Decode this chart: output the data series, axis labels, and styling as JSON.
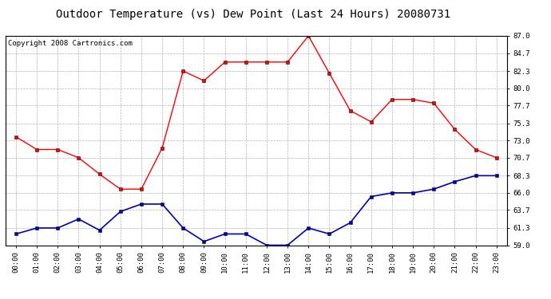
{
  "title": "Outdoor Temperature (vs) Dew Point (Last 24 Hours) 20080731",
  "copyright_text": "Copyright 2008 Cartronics.com",
  "hours": [
    "00:00",
    "01:00",
    "02:00",
    "03:00",
    "04:00",
    "05:00",
    "06:00",
    "07:00",
    "08:00",
    "09:00",
    "10:00",
    "11:00",
    "12:00",
    "13:00",
    "14:00",
    "15:00",
    "16:00",
    "17:00",
    "18:00",
    "19:00",
    "20:00",
    "21:00",
    "22:00",
    "23:00"
  ],
  "temp": [
    73.5,
    71.8,
    71.8,
    70.7,
    68.5,
    66.5,
    66.5,
    72.0,
    82.3,
    81.0,
    83.5,
    83.5,
    83.5,
    83.5,
    87.0,
    82.0,
    77.0,
    75.5,
    78.5,
    78.5,
    78.0,
    74.5,
    71.8,
    70.7
  ],
  "dew": [
    60.5,
    61.3,
    61.3,
    62.5,
    61.0,
    63.5,
    64.5,
    64.5,
    61.3,
    59.5,
    60.5,
    60.5,
    59.0,
    59.0,
    61.3,
    60.5,
    62.0,
    65.5,
    66.0,
    66.0,
    66.5,
    67.5,
    68.3,
    68.3
  ],
  "temp_color": "#ff0000",
  "dew_color": "#0000bb",
  "bg_color": "#ffffff",
  "plot_bg_color": "#ffffff",
  "grid_color": "#aaaaaa",
  "ylim_min": 59.0,
  "ylim_max": 87.0,
  "yticks": [
    59.0,
    61.3,
    63.7,
    66.0,
    68.3,
    70.7,
    73.0,
    75.3,
    77.7,
    80.0,
    82.3,
    84.7,
    87.0
  ],
  "title_fontsize": 10,
  "copyright_fontsize": 6.5,
  "tick_fontsize": 6.5
}
